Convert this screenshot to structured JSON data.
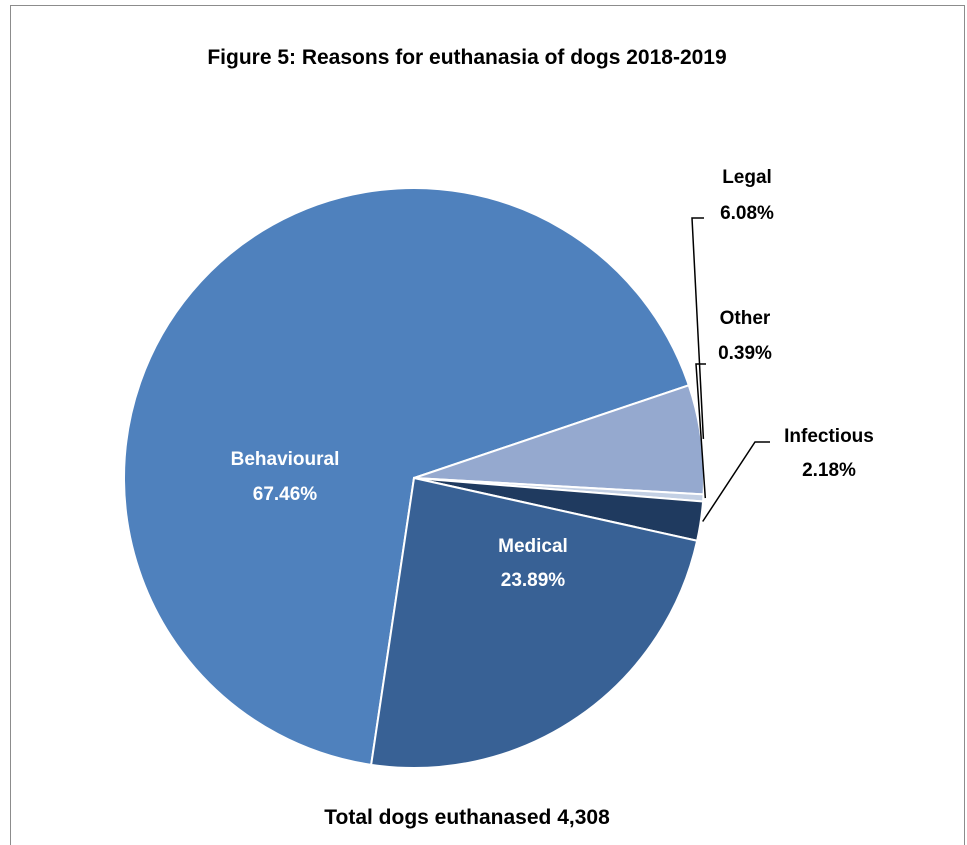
{
  "chart_data": {
    "type": "pie",
    "title": "Figure 5:  Reasons for euthanasia of dogs 2018-2019",
    "footer": "Total dogs euthanased 4,308",
    "slices": [
      {
        "label": "Behavioural",
        "value": 67.46,
        "value_label": "67.46%",
        "color": "#4f81bd",
        "label_color": "#ffffff"
      },
      {
        "label": "Legal",
        "value": 6.08,
        "value_label": "6.08%",
        "color": "#95a9cf",
        "label_color": "#000000"
      },
      {
        "label": "Other",
        "value": 0.39,
        "value_label": "0.39%",
        "color": "#c3d0e4",
        "label_color": "#000000"
      },
      {
        "label": "Infectious",
        "value": 2.18,
        "value_label": "2.18%",
        "color": "#1f3a5f",
        "label_color": "#000000"
      },
      {
        "label": "Medical",
        "value": 23.89,
        "value_label": "23.89%",
        "color": "#386195",
        "label_color": "#ffffff"
      }
    ]
  }
}
